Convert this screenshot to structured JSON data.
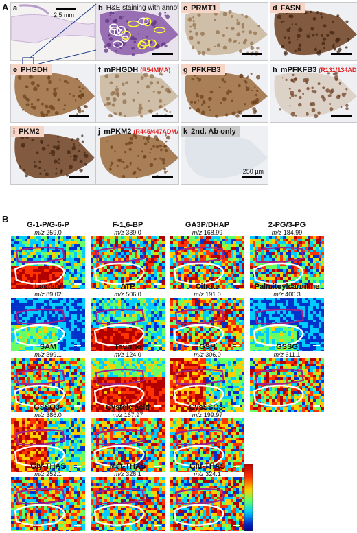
{
  "panel_A": {
    "letter": "A",
    "tiles": [
      {
        "letter": "a",
        "label": "",
        "modification": "",
        "header_style": "white",
        "scale_text": "2.5 mm"
      },
      {
        "letter": "b",
        "label": "H&E staining with annotation",
        "modification": "",
        "header_style": "white",
        "scale_text": ""
      },
      {
        "letter": "c",
        "label": "PRMT1",
        "modification": "",
        "header_style": "pink",
        "scale_text": ""
      },
      {
        "letter": "d",
        "label": "FASN",
        "modification": "",
        "header_style": "pink",
        "scale_text": ""
      },
      {
        "letter": "e",
        "label": "PHGDH",
        "modification": "",
        "header_style": "pink",
        "scale_text": ""
      },
      {
        "letter": "f",
        "label": "mPHGDH",
        "modification": "(R54MMA)",
        "header_style": "white",
        "scale_text": ""
      },
      {
        "letter": "g",
        "label": "PFKFB3",
        "modification": "",
        "header_style": "pink",
        "scale_text": ""
      },
      {
        "letter": "h",
        "label": "mPFKFB3",
        "modification": "(R131/134ADMA)",
        "header_style": "white",
        "scale_text": ""
      },
      {
        "letter": "i",
        "label": "PKM2",
        "modification": "",
        "header_style": "pink",
        "scale_text": ""
      },
      {
        "letter": "j",
        "label": "mPKM2",
        "modification": "(R445/447ADMA)",
        "header_style": "white",
        "scale_text": ""
      },
      {
        "letter": "k",
        "label": "2nd. Ab only",
        "modification": "",
        "header_style": "grey",
        "scale_text": "250 µm"
      }
    ]
  },
  "panel_B": {
    "letter": "B",
    "mz_prefix": "m/z",
    "metabolites": [
      {
        "name": "G-1-P/G-6-P",
        "mz": "259.0"
      },
      {
        "name": "F-1,6-BP",
        "mz": "339.0"
      },
      {
        "name": "GA3P/DHAP",
        "mz": "168.99"
      },
      {
        "name": "2-PG/3-PG",
        "mz": "184.99"
      },
      {
        "name": "Lactate",
        "mz": "89.02"
      },
      {
        "name": "ATP",
        "mz": "506.0"
      },
      {
        "name": "Citrate",
        "mz": "191.0"
      },
      {
        "name": "Palmitoylcarnitine",
        "mz": "400.3"
      },
      {
        "name": "SAM",
        "mz": "399.1"
      },
      {
        "name": "Taurine",
        "mz": "124.0"
      },
      {
        "name": "GSH",
        "mz": "306.0"
      },
      {
        "name": "GSSG",
        "mz": "611.1"
      },
      {
        "name": "GSSO3-",
        "mz": "386.0"
      },
      {
        "name": "Cysteic acid",
        "mz": "167.97"
      },
      {
        "name": "CysSSO3-",
        "mz": "199.97"
      },
      {
        "name": "Gly-THAS",
        "mz": "252.1"
      },
      {
        "name": "Met-THAS",
        "mz": "326.1"
      },
      {
        "name": "Glu-THAS",
        "mz": "324.1"
      }
    ],
    "colormap": [
      "#b30000",
      "#ff3300",
      "#ffcc00",
      "#66ff66",
      "#00ccff",
      "#0033cc",
      "#000088"
    ]
  }
}
